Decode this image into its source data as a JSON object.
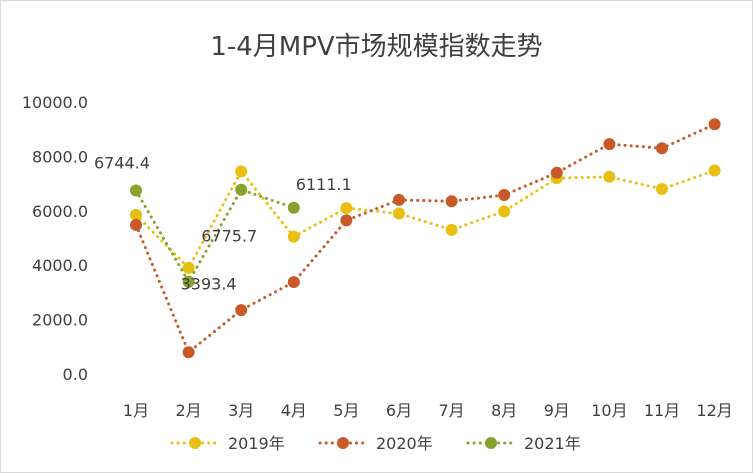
{
  "chart_data": {
    "type": "line",
    "title": "1-4月MPV市场规模指数走势",
    "xlabel": "",
    "ylabel": "",
    "categories": [
      "1月",
      "2月",
      "3月",
      "4月",
      "5月",
      "6月",
      "7月",
      "8月",
      "9月",
      "10月",
      "11月",
      "12月"
    ],
    "ylim": [
      0,
      10000
    ],
    "yticks": [
      "0.0",
      "2000.0",
      "4000.0",
      "6000.0",
      "8000.0",
      "10000.0"
    ],
    "grid": false,
    "legend_position": "bottom",
    "series": [
      {
        "name": "2019年",
        "color": "#e8c014",
        "values": [
          5850,
          3900,
          7450,
          5050,
          6100,
          5900,
          5300,
          5980,
          7200,
          7250,
          6800,
          7480
        ]
      },
      {
        "name": "2020年",
        "color": "#c85a2a",
        "values": [
          5480,
          800,
          2350,
          3380,
          5650,
          6400,
          6350,
          6580,
          7400,
          8450,
          8300,
          9180
        ]
      },
      {
        "name": "2021年",
        "color": "#86a32e",
        "values": [
          6744.4,
          3393.4,
          6775.7,
          6111.1,
          null,
          null,
          null,
          null,
          null,
          null,
          null,
          null
        ]
      }
    ],
    "data_labels": [
      {
        "series": 2,
        "index": 0,
        "text": "6744.4"
      },
      {
        "series": 2,
        "index": 1,
        "text": "3393.4"
      },
      {
        "series": 2,
        "index": 2,
        "text": "6775.7"
      },
      {
        "series": 2,
        "index": 3,
        "text": "6111.1"
      }
    ]
  }
}
